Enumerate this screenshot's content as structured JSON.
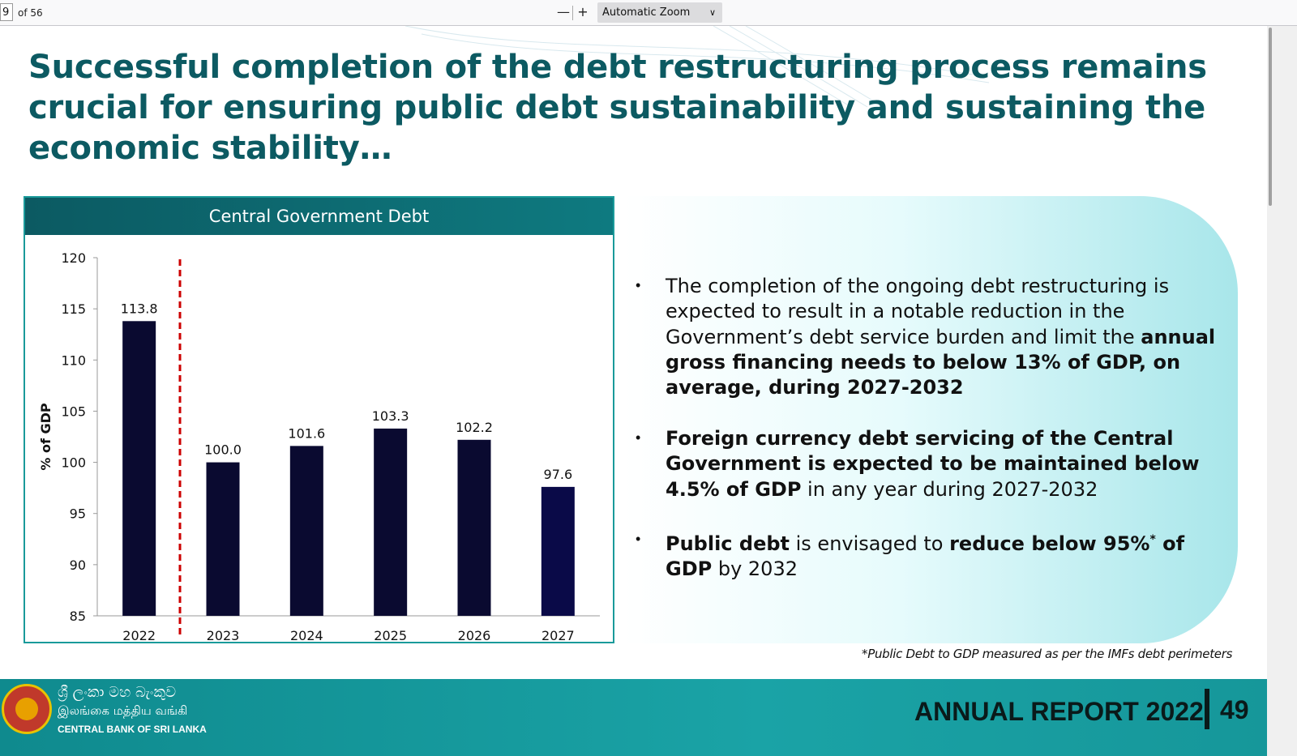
{
  "toolbar": {
    "page_number": "9",
    "page_total": "of 56",
    "zoom_out": "—",
    "zoom_in": "+",
    "zoom_level": "Automatic Zoom"
  },
  "slide": {
    "title": "Successful completion of the debt restructuring process remains crucial for ensuring public debt sustainability and sustaining the economic stability…",
    "bullets": [
      {
        "parts": [
          {
            "text": "The completion of the ongoing debt restructuring is expected to result in a notable reduction in the Government’s debt service burden and limit the ",
            "bold": false
          },
          {
            "text": "annual gross financing needs to below 13% of GDP, on average, during 2027-2032",
            "bold": true
          }
        ]
      },
      {
        "parts": [
          {
            "text": "Foreign currency debt servicing of the Central Government is expected to be maintained below 4.5% of GDP",
            "bold": true
          },
          {
            "text": " in any year during 2027-2032",
            "bold": false
          }
        ]
      },
      {
        "parts": [
          {
            "text": "Public debt",
            "bold": true
          },
          {
            "text": " is envisaged to ",
            "bold": false
          },
          {
            "text": "reduce below 95%",
            "bold": true
          },
          {
            "text": "*",
            "bold": false,
            "sup": true
          },
          {
            "text": " of GDP",
            "bold": true
          },
          {
            "text": " by 2032",
            "bold": false
          }
        ]
      }
    ],
    "bullet_symbol": "•",
    "footnote": "*Public Debt to GDP measured as per the IMFs debt perimeters",
    "footer": {
      "bank_sinhala": "ශ්‍රී ලංකා මහ බැංකුව",
      "bank_tamil": "இலங்கை மத்திய வங்கி",
      "bank_english": "CENTRAL BANK OF SRI LANKA",
      "report_title": "ANNUAL REPORT 2022",
      "page_number": "49"
    }
  },
  "chart_data": {
    "type": "bar",
    "title": "Central Government Debt",
    "ylabel": "% of GDP",
    "xlabel": "",
    "categories": [
      "2022",
      "2023",
      "2024",
      "2025",
      "2026",
      "2027"
    ],
    "values": [
      113.8,
      100.0,
      101.6,
      103.3,
      102.2,
      97.6
    ],
    "value_labels": [
      "113.8",
      "100.0",
      "101.6",
      "103.3",
      "102.2",
      "97.6"
    ],
    "ylim": [
      85,
      120
    ],
    "yticks": [
      120,
      115,
      110,
      105,
      100,
      95,
      90,
      85
    ],
    "grid": false,
    "divider_after_category": "2022",
    "colors": {
      "bar": "#0a0a30",
      "last_bar": "#0a0a48",
      "divider": "#cc0000"
    }
  }
}
